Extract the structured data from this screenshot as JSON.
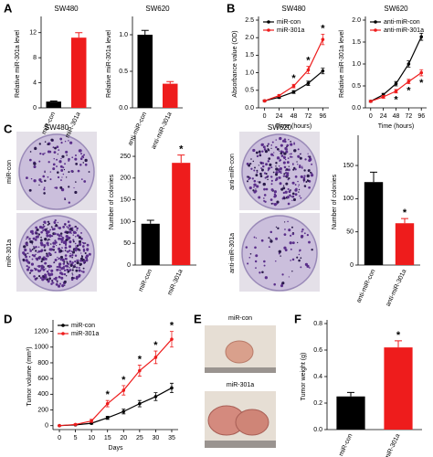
{
  "panels": [
    "A",
    "B",
    "C",
    "D",
    "E",
    "F"
  ],
  "colony_images": [
    {
      "title": "SW480",
      "labels": [
        "miR-con",
        "miR-301a"
      ]
    },
    {
      "title": "SW620",
      "labels": [
        "anti-miR-con",
        "anti-miR-301a"
      ]
    }
  ],
  "tumor_images": {
    "labels": [
      "miR-con",
      "miR-301a"
    ]
  },
  "chart_data": [
    {
      "type": "bar",
      "title": "SW480",
      "ylabel": "Relative miR-301a level",
      "categories": [
        "miR-con",
        "miR-301a"
      ],
      "values": [
        1,
        11.2
      ],
      "errors": [
        0.1,
        0.8
      ],
      "colors": [
        "#000000",
        "#ee1c1c"
      ],
      "ylim": [
        0,
        14
      ],
      "yticks": [
        0,
        4,
        8,
        12
      ]
    },
    {
      "type": "bar",
      "title": "SW620",
      "ylabel": "Relative miR-301a level",
      "categories": [
        "anti-miR-con",
        "anti-miR-301a"
      ],
      "values": [
        1.0,
        0.33
      ],
      "errors": [
        0.06,
        0.03
      ],
      "colors": [
        "#000000",
        "#ee1c1c"
      ],
      "ylim": [
        0,
        1.2
      ],
      "yticks": [
        {
          "value": 0,
          "label": "0.0"
        },
        0.5,
        {
          "value": 1,
          "label": "1.0"
        }
      ]
    },
    {
      "type": "line",
      "title": "SW480",
      "xlabel": "Time (hours)",
      "ylabel": "Absorbance value (OD)",
      "x": [
        0,
        24,
        48,
        72,
        96
      ],
      "xlim": [
        -10,
        106
      ],
      "xticks": [
        0,
        24,
        48,
        72,
        96
      ],
      "ylim": [
        0,
        2.5
      ],
      "yticks": [
        {
          "value": 0,
          "label": "0.0"
        },
        0.5,
        {
          "value": 1,
          "label": "1.0"
        },
        1.5,
        {
          "value": 2,
          "label": "2.0"
        },
        2.5
      ],
      "legend": "upper left",
      "series": [
        {
          "name": "miR-con",
          "color": "#000000",
          "values": [
            0.2,
            0.3,
            0.45,
            0.7,
            1.05
          ],
          "errors": [
            0.02,
            0.03,
            0.04,
            0.06,
            0.08
          ]
        },
        {
          "name": "miR-301a",
          "color": "#ee1c1c",
          "values": [
            0.2,
            0.35,
            0.62,
            1.08,
            1.95
          ],
          "errors": [
            0.02,
            0.03,
            0.05,
            0.1,
            0.15
          ]
        }
      ],
      "significance": {
        "label": "*",
        "at": [
          48,
          72,
          96
        ],
        "position": "above"
      }
    },
    {
      "type": "line",
      "title": "SW620",
      "xlabel": "Time (hours)",
      "ylabel": "Relative miR-301a level",
      "x": [
        0,
        24,
        48,
        72,
        96
      ],
      "xlim": [
        -10,
        106
      ],
      "xticks": [
        0,
        24,
        48,
        72,
        96
      ],
      "ylim": [
        0,
        2.0
      ],
      "yticks": [
        {
          "value": 0,
          "label": "0.0"
        },
        0.5,
        {
          "value": 1,
          "label": "1.0"
        },
        1.5,
        {
          "value": 2,
          "label": "2.0"
        }
      ],
      "legend": "upper left",
      "series": [
        {
          "name": "anti-miR-con",
          "color": "#000000",
          "values": [
            0.15,
            0.3,
            0.55,
            1.0,
            1.62
          ],
          "errors": [
            0.02,
            0.03,
            0.05,
            0.07,
            0.08
          ]
        },
        {
          "name": "anti-miR-301a",
          "color": "#ee1c1c",
          "values": [
            0.15,
            0.25,
            0.38,
            0.6,
            0.8
          ],
          "errors": [
            0.02,
            0.03,
            0.04,
            0.05,
            0.07
          ]
        }
      ],
      "significance": {
        "label": "*",
        "at": [
          48,
          72,
          96
        ],
        "position": "below"
      }
    },
    {
      "type": "bar",
      "ylabel": "Number of colonies",
      "categories": [
        "miR-con",
        "miR-301a"
      ],
      "values": [
        95,
        235
      ],
      "errors": [
        8,
        18
      ],
      "colors": [
        "#000000",
        "#ee1c1c"
      ],
      "ylim": [
        0,
        290
      ],
      "yticks": [
        0,
        50,
        100,
        150,
        200,
        250
      ],
      "significance": {
        "label": "*",
        "at": [
          "miR-301a"
        ]
      }
    },
    {
      "type": "bar",
      "ylabel": "Number of colonies",
      "categories": [
        "anti-miR-con",
        "anti-miR-301a"
      ],
      "values": [
        125,
        63
      ],
      "errors": [
        15,
        7
      ],
      "colors": [
        "#000000",
        "#ee1c1c"
      ],
      "ylim": [
        0,
        190
      ],
      "yticks": [
        0,
        50,
        100,
        150
      ],
      "significance": {
        "label": "*",
        "at": [
          "anti-miR-301a"
        ]
      }
    },
    {
      "type": "line",
      "xlabel": "Days",
      "ylabel": "Tumor volume (mm³)",
      "x": [
        0,
        5,
        10,
        15,
        20,
        25,
        30,
        35
      ],
      "xlim": [
        -2,
        37
      ],
      "xticks": [
        0,
        5,
        10,
        15,
        20,
        25,
        30,
        35
      ],
      "ylim": [
        -50,
        1300
      ],
      "yticks": [
        0,
        200,
        400,
        600,
        800,
        1000,
        1200
      ],
      "legend": "upper left",
      "series": [
        {
          "name": "miR-con",
          "color": "#000000",
          "values": [
            0,
            10,
            30,
            100,
            180,
            280,
            370,
            480
          ],
          "errors": [
            0,
            5,
            10,
            20,
            30,
            40,
            50,
            60
          ]
        },
        {
          "name": "miR-301a",
          "color": "#ee1c1c",
          "values": [
            0,
            15,
            60,
            280,
            450,
            700,
            870,
            1100
          ],
          "errors": [
            0,
            8,
            20,
            40,
            60,
            70,
            80,
            100
          ]
        }
      ],
      "significance": {
        "label": "*",
        "at": [
          15,
          20,
          25,
          30,
          35
        ],
        "position": "above"
      }
    },
    {
      "type": "bar",
      "ylabel": "Tumor weight (g)",
      "categories": [
        "miR-con",
        "miR-301a"
      ],
      "values": [
        0.25,
        0.62
      ],
      "errors": [
        0.03,
        0.05
      ],
      "colors": [
        "#000000",
        "#ee1c1c"
      ],
      "ylim": [
        0,
        0.8
      ],
      "yticks": [
        {
          "value": 0,
          "label": "0.0"
        },
        0.2,
        0.4,
        0.6,
        0.8
      ],
      "significance": {
        "label": "*",
        "at": [
          "miR-301a"
        ]
      }
    }
  ]
}
